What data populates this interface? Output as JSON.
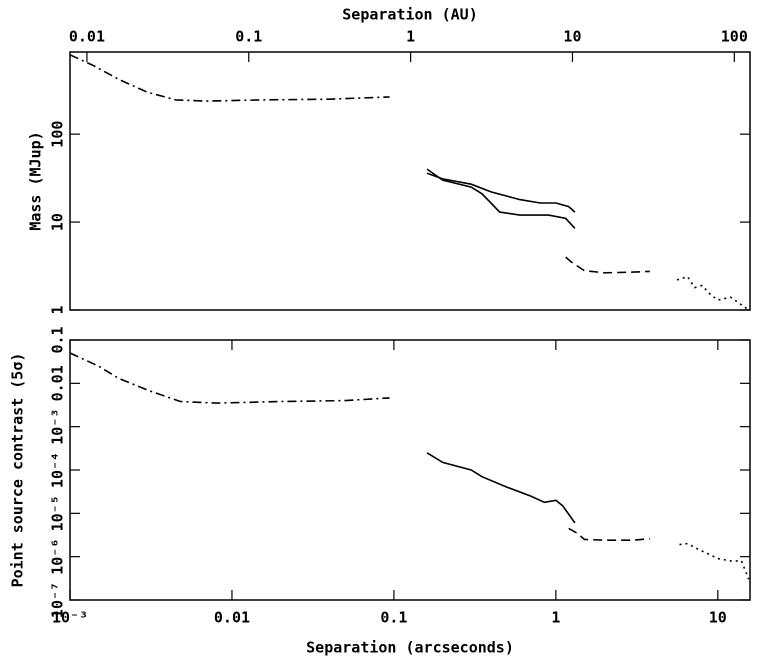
{
  "chart_data": [
    {
      "type": "line",
      "x2label": "Separation (AU)",
      "ylabel": "Mass (MJup)",
      "xlim": [
        0.001,
        15.8
      ],
      "xlog": true,
      "x2lim": [
        0.00786,
        125
      ],
      "x2ticks": [
        0.01,
        0.1,
        1,
        10,
        100
      ],
      "x2log": true,
      "ylim": [
        1,
        860
      ],
      "ylog": true,
      "yticks": [
        1,
        10,
        100
      ],
      "series": [
        {
          "color": "#000000",
          "style": "dash-dot",
          "x": [
            0.001,
            0.0014,
            0.002,
            0.003,
            0.0045,
            0.007,
            0.015,
            0.04,
            0.094
          ],
          "values": [
            800,
            600,
            420,
            300,
            245,
            238,
            245,
            250,
            265
          ]
        },
        {
          "color": "#000000",
          "style": "solid",
          "x": [
            0.16,
            0.2,
            0.3,
            0.4,
            0.6,
            0.8,
            1.0,
            1.2,
            1.31
          ],
          "values": [
            36,
            31,
            27,
            22,
            18,
            16.5,
            16.5,
            15,
            13
          ]
        },
        {
          "color": "#000000",
          "style": "solid",
          "x": [
            0.16,
            0.2,
            0.3,
            0.35,
            0.45,
            0.6,
            0.9,
            1.15,
            1.31
          ],
          "values": [
            40,
            30,
            25,
            21,
            13,
            12,
            12,
            11,
            8.5
          ]
        },
        {
          "color": "#000000",
          "style": "dashed",
          "x": [
            1.15,
            1.25,
            1.5,
            2,
            3,
            3.8
          ],
          "values": [
            4,
            3.5,
            2.8,
            2.65,
            2.7,
            2.75
          ]
        },
        {
          "color": "#000000",
          "style": "dotted",
          "x": [
            5.6,
            6.5,
            7.2,
            8,
            9,
            10,
            12,
            13.5,
            15.5
          ],
          "values": [
            2.2,
            2.4,
            1.8,
            1.9,
            1.5,
            1.3,
            1.4,
            1.2,
            1.0
          ]
        }
      ]
    },
    {
      "type": "line",
      "xlabel": "Separation (arcseconds)",
      "ylabel": "Point source contrast (5σ)",
      "xlim": [
        0.001,
        15.8
      ],
      "xlog": true,
      "xticks": [
        {
          "value": 0.001,
          "label": "10⁻³"
        },
        0.01,
        0.1,
        1,
        10
      ],
      "ylim": [
        1e-07,
        0.1
      ],
      "ylog": true,
      "yticks": [
        {
          "value": 1e-07,
          "label": "10⁻⁷"
        },
        {
          "value": 1e-06,
          "label": "10⁻⁶"
        },
        {
          "value": 1e-05,
          "label": "10⁻⁵"
        },
        {
          "value": 0.0001,
          "label": "10⁻⁴"
        },
        {
          "value": 0.001,
          "label": "10⁻³"
        },
        0.01,
        0.1
      ],
      "series": [
        {
          "color": "#000000",
          "style": "dash-dot",
          "x": [
            0.001,
            0.0015,
            0.002,
            0.003,
            0.0048,
            0.008,
            0.02,
            0.05,
            0.094
          ],
          "values": [
            0.05,
            0.025,
            0.013,
            0.007,
            0.0038,
            0.0035,
            0.0038,
            0.004,
            0.0046
          ]
        },
        {
          "color": "#000000",
          "style": "solid",
          "x": [
            0.16,
            0.2,
            0.3,
            0.35,
            0.5,
            0.7,
            0.85,
            1.0,
            1.1,
            1.31
          ],
          "values": [
            0.00025,
            0.00015,
            0.0001,
            7e-05,
            4e-05,
            2.5e-05,
            1.8e-05,
            2e-05,
            1.5e-05,
            6e-06
          ]
        },
        {
          "color": "#000000",
          "style": "dashed",
          "x": [
            1.2,
            1.35,
            1.5,
            2,
            3,
            3.8
          ],
          "values": [
            4.5e-06,
            3.5e-06,
            2.5e-06,
            2.4e-06,
            2.4e-06,
            2.6e-06
          ]
        },
        {
          "color": "#000000",
          "style": "dotted",
          "x": [
            5.8,
            6.5,
            7.5,
            9,
            10,
            12,
            14,
            15.5
          ],
          "values": [
            1.9e-06,
            2e-06,
            1.5e-06,
            1.1e-06,
            9e-07,
            8e-07,
            8e-07,
            3e-07
          ]
        }
      ]
    }
  ]
}
